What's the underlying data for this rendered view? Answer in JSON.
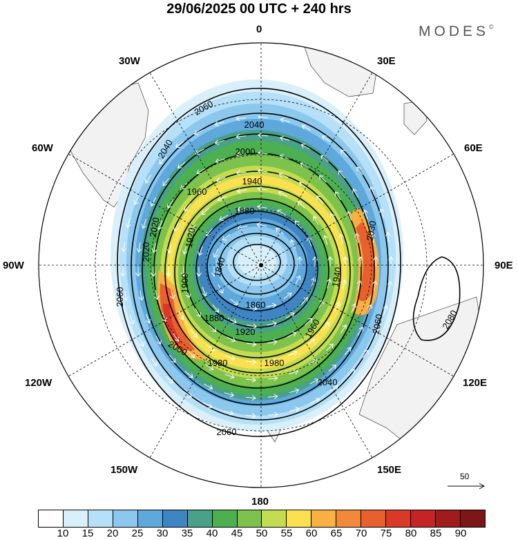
{
  "header": {
    "title": "29/06/2025  00 UTC  + 240 hrs",
    "brand": "MODES"
  },
  "longitude_labels": [
    {
      "text": "0",
      "name": "lon-label-0"
    },
    {
      "text": "30E",
      "name": "lon-label-30e"
    },
    {
      "text": "60E",
      "name": "lon-label-60e"
    },
    {
      "text": "90E",
      "name": "lon-label-90e"
    },
    {
      "text": "120E",
      "name": "lon-label-120e"
    },
    {
      "text": "150E",
      "name": "lon-label-150e"
    },
    {
      "text": "180",
      "name": "lon-label-180"
    },
    {
      "text": "150W",
      "name": "lon-label-150w"
    },
    {
      "text": "120W",
      "name": "lon-label-120w"
    },
    {
      "text": "90W",
      "name": "lon-label-90w"
    },
    {
      "text": "60W",
      "name": "lon-label-60w"
    },
    {
      "text": "30W",
      "name": "lon-label-30w"
    }
  ],
  "contour_labels": [
    "2060",
    "2040",
    "2000",
    "1960",
    "1940",
    "1880",
    "1920",
    "2020",
    "1900",
    "1840",
    "1860",
    "1880",
    "1920",
    "1960",
    "1980",
    "2000",
    "1980",
    "2040",
    "2060",
    "2060",
    "2020",
    "2040",
    "1940",
    "2030",
    "2060",
    "2080"
  ],
  "colorbar": {
    "colors": [
      "#ffffff",
      "#d9f0fb",
      "#b5e0f8",
      "#8cc8ee",
      "#5ea8dc",
      "#3f85c4",
      "#4aa088",
      "#4db050",
      "#7cc24c",
      "#c3dc50",
      "#fbe150",
      "#f8b044",
      "#f08a3a",
      "#e8602e",
      "#d93a28",
      "#c32424",
      "#a01c1c",
      "#7d1616"
    ],
    "labels": [
      "10",
      "15",
      "20",
      "25",
      "30",
      "35",
      "40",
      "45",
      "50",
      "55",
      "60",
      "65",
      "70",
      "75",
      "80",
      "85",
      "90"
    ]
  },
  "wind_reference": {
    "label": "50"
  }
}
